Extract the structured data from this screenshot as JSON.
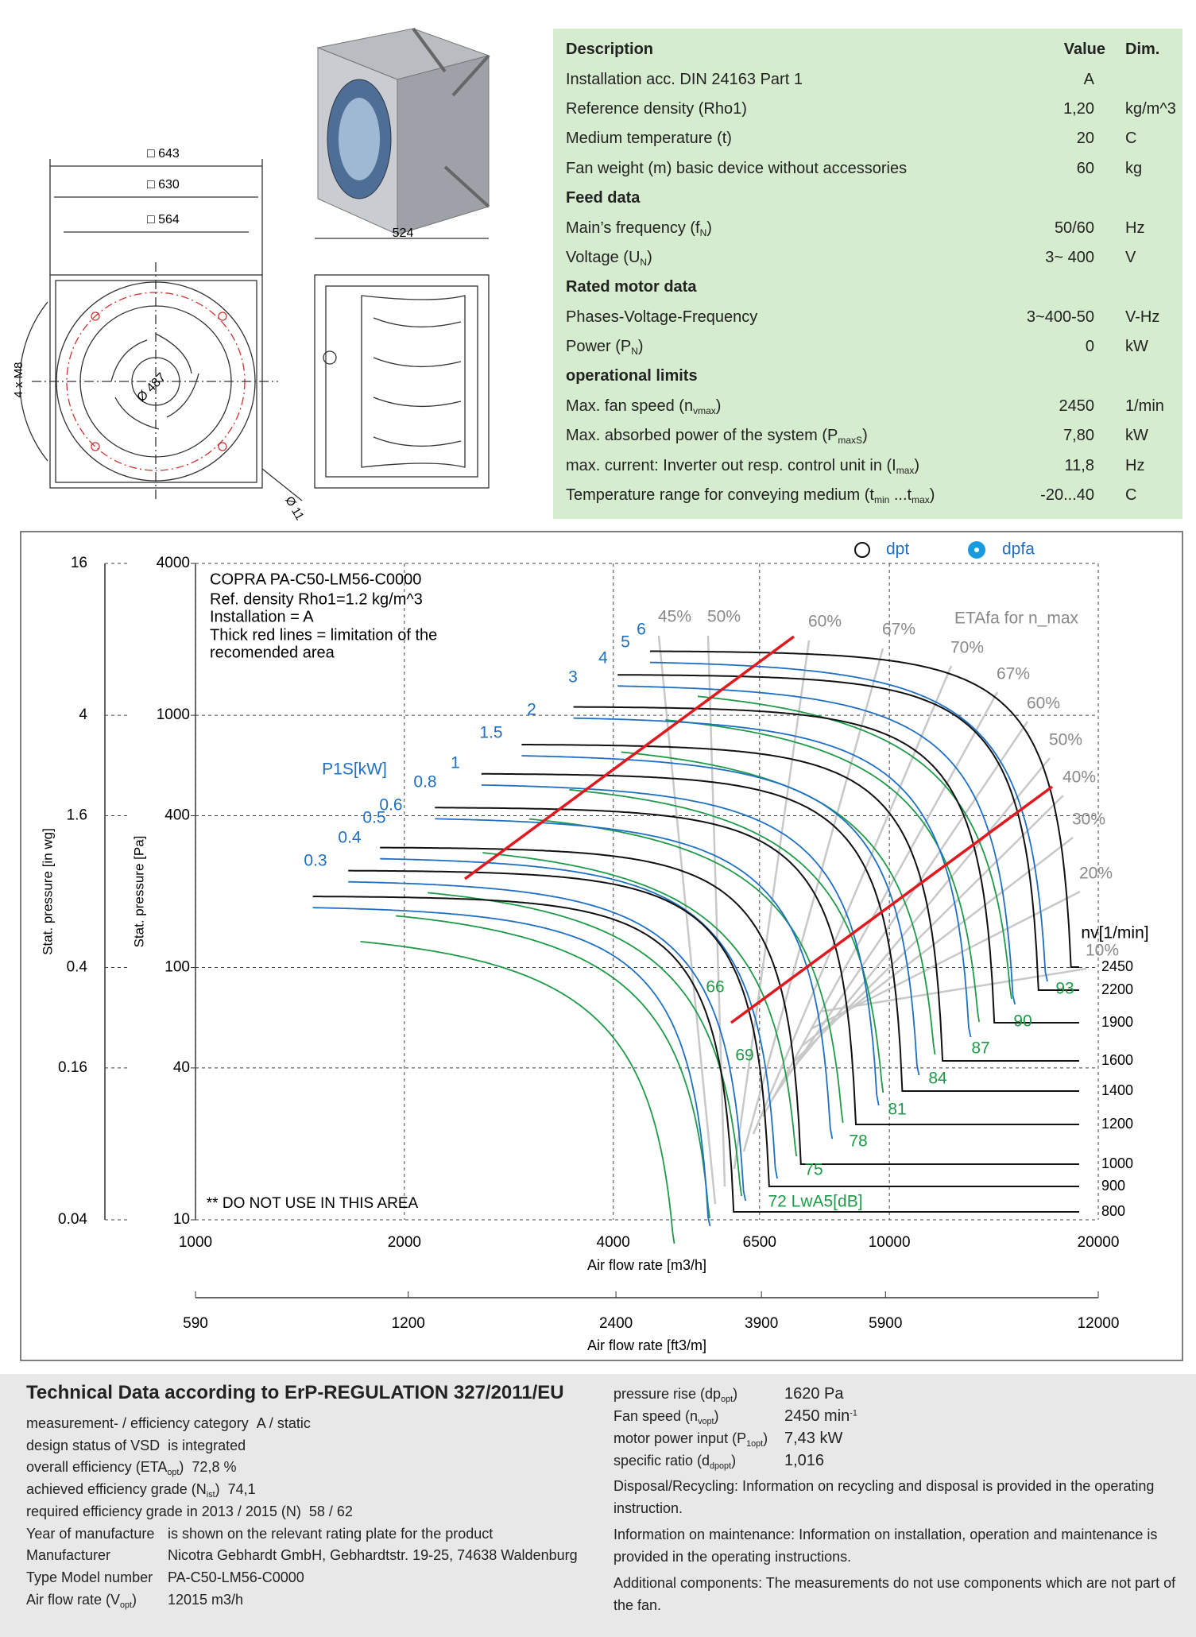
{
  "drawing": {
    "dims": [
      "□ 643",
      "□ 630",
      "□ 564"
    ],
    "depth": "524",
    "impeller": "Ø 487",
    "bolts": "4 x M8",
    "hole": "Ø 11"
  },
  "specs": {
    "header": [
      "Description",
      "Value",
      "Dim."
    ],
    "rows": [
      {
        "label": [
          "Installation acc. DIN 24163 Part 1"
        ],
        "value": "A"
      },
      {
        "label": [
          "Reference density (Rho1)"
        ],
        "value": "1,20",
        "dim": "kg/m^3"
      },
      {
        "label": [
          "Medium temperature (t)"
        ],
        "value": "20",
        "dim": "C"
      },
      {
        "label": [
          "Fan weight (m) basic device without accessories"
        ],
        "value": "60",
        "dim": "kg"
      },
      {
        "section": "Feed data"
      },
      {
        "label": [
          "Main’s frequency (f",
          "N",
          ")"
        ],
        "value": "50/60",
        "dim": "Hz"
      },
      {
        "label": [
          "Voltage (U",
          "N",
          ")"
        ],
        "value": "3~ 400",
        "dim": "V"
      },
      {
        "section": "Rated motor data"
      },
      {
        "label": [
          "Phases-Voltage-Frequency"
        ],
        "value": "3~400-50",
        "dim": "V-Hz"
      },
      {
        "label": [
          "Power (P",
          "N",
          ")"
        ],
        "value": "0",
        "dim": "kW"
      },
      {
        "section": "operational limits"
      },
      {
        "label": [
          "Max. fan speed (n",
          "vmax",
          ")"
        ],
        "value": "2450",
        "dim": "1/min"
      },
      {
        "label": [
          "Max. absorbed power of the system (P",
          "maxS",
          ")"
        ],
        "value": "7,80",
        "dim": "kW"
      },
      {
        "label": [
          "max. current: Inverter out resp. control unit in (I",
          "max",
          ")"
        ],
        "value": "11,8",
        "dim": "Hz"
      },
      {
        "label": [
          "Temperature range for conveying medium (t",
          "min",
          " ...t",
          "max",
          ")"
        ],
        "value": "-20...40",
        "dim": "C"
      }
    ]
  },
  "chart": {
    "legend": [
      "dpt",
      "dpfa"
    ],
    "notes": [
      "COPRA PA-C50-LM56-C0000",
      "Ref. density Rho1=1.2 kg/m^3",
      "Installation = A",
      "Thick red lines = limitation of the",
      "recomended area"
    ],
    "eta_title": "ETAfa for n_max",
    "eta_labels": [
      "45%",
      "50%",
      "60%",
      "67%",
      "70%",
      "67%",
      "60%",
      "50%",
      "40%",
      "30%",
      "20%",
      "10%"
    ],
    "power_title": "P1S[kW]",
    "power_labels": [
      0.3,
      0.4,
      0.5,
      0.6,
      0.8,
      1,
      1.5,
      2,
      3,
      4,
      5,
      6
    ],
    "sound_labels": [
      66,
      69,
      {
        "value": 72,
        "label": "72 LwA5[dB]"
      },
      75,
      78,
      81,
      84,
      87,
      90,
      93
    ],
    "speed_title": "nv[1/min]",
    "speeds": [
      2450,
      2200,
      1900,
      1600,
      1400,
      1200,
      1000,
      900,
      800
    ],
    "warning": "** DO NOT USE IN THIS AREA",
    "ylabel": "Stat. pressure [Pa]",
    "ylim": [
      10,
      4000
    ],
    "yticks": [
      4000,
      1000,
      400,
      100,
      40,
      10
    ],
    "y2label": "Stat. pressure [in wg]",
    "y2lim": [
      0.04,
      16
    ],
    "y2ticks": [
      16,
      4,
      1.6,
      0.4,
      0.16,
      0.04
    ],
    "xlabel": "Air flow rate [m3/h]",
    "xlim": [
      1000,
      20000
    ],
    "xticks": [
      1000,
      2000,
      4000,
      6500,
      10000,
      20000
    ],
    "x2label": "Air flow rate [ft3/m]",
    "x2lim": [
      590,
      12000
    ],
    "x2ticks": [
      590,
      1200,
      2400,
      3900,
      5900,
      12000
    ]
  },
  "tech": {
    "title": "Technical Data according to ErP-REGULATION 327/2011/EU",
    "left": [
      {
        "label": [
          "measurement- / efficiency category"
        ],
        "value": "A / static"
      },
      {
        "label": [
          "design status of VSD"
        ],
        "value": "is integrated"
      },
      {
        "label": [
          "overall efficiency (ETA",
          "opt",
          ")"
        ],
        "value": "72,8 %"
      },
      {
        "label": [
          "achieved efficiency grade (N",
          "ist",
          ")"
        ],
        "value": "74,1"
      },
      {
        "label": [
          "required efficiency grade in 2013 / 2015 (N)"
        ],
        "value": "58 / 62"
      },
      {
        "label": [
          "Year of manufacture"
        ],
        "value": "is shown on the relevant rating plate for the product"
      },
      {
        "label": [
          "Manufacturer"
        ],
        "value": "Nicotra Gebhardt GmbH, Gebhardtstr. 19-25, 74638 Waldenburg"
      },
      {
        "label": [
          "Type Model number"
        ],
        "value": "PA-C50-LM56-C0000"
      },
      {
        "label": [
          "Air flow rate (V",
          "opt",
          ")"
        ],
        "value": "12015 m3/h"
      }
    ],
    "right": [
      {
        "label": [
          "pressure rise (dp",
          "opt",
          ")"
        ],
        "value": "1620 Pa"
      },
      {
        "label": [
          "Fan speed (n",
          "vopt",
          ")"
        ],
        "value": "2450 min",
        "value_sup": "-1"
      },
      {
        "label": [
          "motor power input (P",
          "1opt",
          ")"
        ],
        "value": "7,43 kW"
      },
      {
        "label": [
          "specific ratio (d",
          "dpopt",
          ")"
        ],
        "value": "1,016"
      }
    ],
    "notes": [
      "Disposal/Recycling: Information on recycling and disposal is provided in the operating instruction.",
      "Information on maintenance: Information on installation, operation and maintenance is provided in the operating instructions.",
      "Additional components: The measurements do not use components which are not part of the fan."
    ]
  }
}
